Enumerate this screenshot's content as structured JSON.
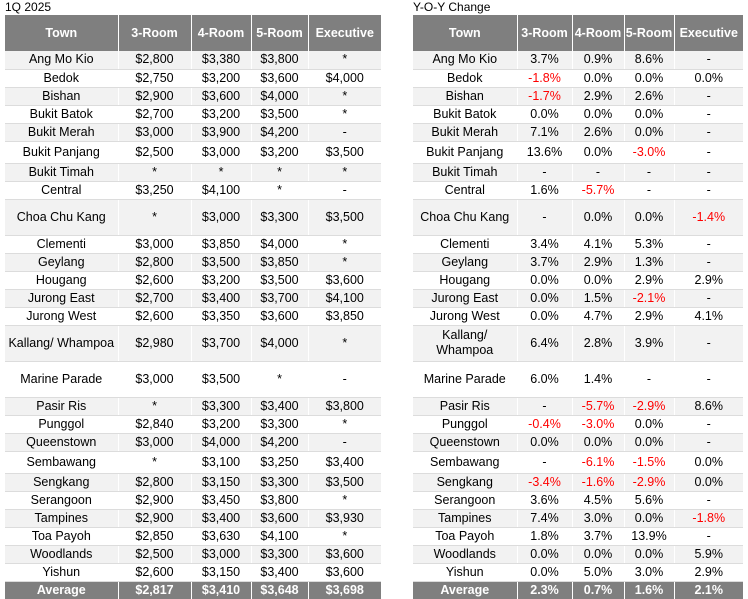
{
  "left": {
    "caption": "1Q 2025",
    "headers": [
      "Town",
      "3-Room",
      "4-Room",
      "5-Room",
      "Executive"
    ],
    "rows": [
      {
        "town": "Ang Mo Kio",
        "v": [
          "$2,800",
          "$3,380",
          "$3,800",
          "*"
        ],
        "h": 18
      },
      {
        "town": "Bedok",
        "v": [
          "$2,750",
          "$3,200",
          "$3,600",
          "$4,000"
        ],
        "h": 18
      },
      {
        "town": "Bishan",
        "v": [
          "$2,900",
          "$3,600",
          "$4,000",
          "*"
        ],
        "h": 18
      },
      {
        "town": "Bukit Batok",
        "v": [
          "$2,700",
          "$3,200",
          "$3,500",
          "*"
        ],
        "h": 18
      },
      {
        "town": "Bukit Merah",
        "v": [
          "$3,000",
          "$3,900",
          "$4,200",
          "-"
        ],
        "h": 18
      },
      {
        "town": "Bukit Panjang",
        "v": [
          "$2,500",
          "$3,000",
          "$3,200",
          "$3,500"
        ],
        "h": 22
      },
      {
        "town": "Bukit Timah",
        "v": [
          "*",
          "*",
          "*",
          "*"
        ],
        "h": 18
      },
      {
        "town": "Central",
        "v": [
          "$3,250",
          "$4,100",
          "*",
          "-"
        ],
        "h": 18
      },
      {
        "town": "Choa Chu Kang",
        "v": [
          "*",
          "$3,000",
          "$3,300",
          "$3,500"
        ],
        "h": 36
      },
      {
        "town": "Clementi",
        "v": [
          "$3,000",
          "$3,850",
          "$4,000",
          "*"
        ],
        "h": 18
      },
      {
        "town": "Geylang",
        "v": [
          "$2,800",
          "$3,500",
          "$3,850",
          "*"
        ],
        "h": 18
      },
      {
        "town": "Hougang",
        "v": [
          "$2,600",
          "$3,200",
          "$3,500",
          "$3,600"
        ],
        "h": 18
      },
      {
        "town": "Jurong East",
        "v": [
          "$2,700",
          "$3,400",
          "$3,700",
          "$4,100"
        ],
        "h": 18
      },
      {
        "town": "Jurong West",
        "v": [
          "$2,600",
          "$3,350",
          "$3,600",
          "$3,850"
        ],
        "h": 18
      },
      {
        "town": "Kallang/ Whampoa",
        "v": [
          "$2,980",
          "$3,700",
          "$4,000",
          "*"
        ],
        "h": 36
      },
      {
        "town": "Marine Parade",
        "v": [
          "$3,000",
          "$3,500",
          "*",
          "-"
        ],
        "h": 36
      },
      {
        "town": "Pasir Ris",
        "v": [
          "*",
          "$3,300",
          "$3,400",
          "$3,800"
        ],
        "h": 18
      },
      {
        "town": "Punggol",
        "v": [
          "$2,840",
          "$3,200",
          "$3,300",
          "*"
        ],
        "h": 18
      },
      {
        "town": "Queenstown",
        "v": [
          "$3,000",
          "$4,000",
          "$4,200",
          "-"
        ],
        "h": 18
      },
      {
        "town": "Sembawang",
        "v": [
          "*",
          "$3,100",
          "$3,250",
          "$3,400"
        ],
        "h": 22
      },
      {
        "town": "Sengkang",
        "v": [
          "$2,800",
          "$3,150",
          "$3,300",
          "$3,500"
        ],
        "h": 18
      },
      {
        "town": "Serangoon",
        "v": [
          "$2,900",
          "$3,450",
          "$3,800",
          "*"
        ],
        "h": 18
      },
      {
        "town": "Tampines",
        "v": [
          "$2,900",
          "$3,400",
          "$3,600",
          "$3,930"
        ],
        "h": 18
      },
      {
        "town": "Toa Payoh",
        "v": [
          "$2,850",
          "$3,630",
          "$4,100",
          "*"
        ],
        "h": 18
      },
      {
        "town": "Woodlands",
        "v": [
          "$2,500",
          "$3,000",
          "$3,300",
          "$3,600"
        ],
        "h": 18
      },
      {
        "town": "Yishun",
        "v": [
          "$2,600",
          "$3,150",
          "$3,400",
          "$3,600"
        ],
        "h": 18
      }
    ],
    "average": {
      "label": "Average",
      "v": [
        "$2,817",
        "$3,410",
        "$3,648",
        "$3,698"
      ]
    }
  },
  "right": {
    "caption": "Y-O-Y Change",
    "headers": [
      "Town",
      "3-Room",
      "4-Room",
      "5-Room",
      "Executive"
    ],
    "rows": [
      {
        "town": "Ang Mo Kio",
        "v": [
          "3.7%",
          "0.9%",
          "8.6%",
          "-"
        ],
        "h": 18
      },
      {
        "town": "Bedok",
        "v": [
          "-1.8%",
          "0.0%",
          "0.0%",
          "0.0%"
        ],
        "h": 18
      },
      {
        "town": "Bishan",
        "v": [
          "-1.7%",
          "2.9%",
          "2.6%",
          "-"
        ],
        "h": 18
      },
      {
        "town": "Bukit Batok",
        "v": [
          "0.0%",
          "0.0%",
          "0.0%",
          "-"
        ],
        "h": 18
      },
      {
        "town": "Bukit Merah",
        "v": [
          "7.1%",
          "2.6%",
          "0.0%",
          "-"
        ],
        "h": 18
      },
      {
        "town": "Bukit Panjang",
        "v": [
          "13.6%",
          "0.0%",
          "-3.0%",
          "-"
        ],
        "h": 22
      },
      {
        "town": "Bukit Timah",
        "v": [
          "-",
          "-",
          "-",
          "-"
        ],
        "h": 18
      },
      {
        "town": "Central",
        "v": [
          "1.6%",
          "-5.7%",
          "-",
          "-"
        ],
        "h": 18
      },
      {
        "town": "Choa Chu Kang",
        "v": [
          "-",
          "0.0%",
          "0.0%",
          "-1.4%"
        ],
        "h": 36
      },
      {
        "town": "Clementi",
        "v": [
          "3.4%",
          "4.1%",
          "5.3%",
          "-"
        ],
        "h": 18
      },
      {
        "town": "Geylang",
        "v": [
          "3.7%",
          "2.9%",
          "1.3%",
          "-"
        ],
        "h": 18
      },
      {
        "town": "Hougang",
        "v": [
          "0.0%",
          "0.0%",
          "2.9%",
          "2.9%"
        ],
        "h": 18
      },
      {
        "town": "Jurong East",
        "v": [
          "0.0%",
          "1.5%",
          "-2.1%",
          "-"
        ],
        "h": 18
      },
      {
        "town": "Jurong West",
        "v": [
          "0.0%",
          "4.7%",
          "2.9%",
          "4.1%"
        ],
        "h": 18
      },
      {
        "town": "Kallang/ Whampoa",
        "v": [
          "6.4%",
          "2.8%",
          "3.9%",
          "-"
        ],
        "h": 36
      },
      {
        "town": "Marine Parade",
        "v": [
          "6.0%",
          "1.4%",
          "-",
          "-"
        ],
        "h": 36
      },
      {
        "town": "Pasir Ris",
        "v": [
          "-",
          "-5.7%",
          "-2.9%",
          "8.6%"
        ],
        "h": 18
      },
      {
        "town": "Punggol",
        "v": [
          "-0.4%",
          "-3.0%",
          "0.0%",
          "-"
        ],
        "h": 18
      },
      {
        "town": "Queenstown",
        "v": [
          "0.0%",
          "0.0%",
          "0.0%",
          "-"
        ],
        "h": 18
      },
      {
        "town": "Sembawang",
        "v": [
          "-",
          "-6.1%",
          "-1.5%",
          "0.0%"
        ],
        "h": 22
      },
      {
        "town": "Sengkang",
        "v": [
          "-3.4%",
          "-1.6%",
          "-2.9%",
          "0.0%"
        ],
        "h": 18
      },
      {
        "town": "Serangoon",
        "v": [
          "3.6%",
          "4.5%",
          "5.6%",
          "-"
        ],
        "h": 18
      },
      {
        "town": "Tampines",
        "v": [
          "7.4%",
          "3.0%",
          "0.0%",
          "-1.8%"
        ],
        "h": 18
      },
      {
        "town": "Toa Payoh",
        "v": [
          "1.8%",
          "3.7%",
          "13.9%",
          "-"
        ],
        "h": 18
      },
      {
        "town": "Woodlands",
        "v": [
          "0.0%",
          "0.0%",
          "0.0%",
          "5.9%"
        ],
        "h": 18
      },
      {
        "town": "Yishun",
        "v": [
          "0.0%",
          "5.0%",
          "3.0%",
          "2.9%"
        ],
        "h": 18
      }
    ],
    "average": {
      "label": "Average",
      "v": [
        "2.3%",
        "0.7%",
        "1.6%",
        "2.1%"
      ]
    }
  },
  "colors": {
    "header_bg": "#7f7f7f",
    "row_alt": "#f2f2f2",
    "negative": "#ff0000"
  }
}
